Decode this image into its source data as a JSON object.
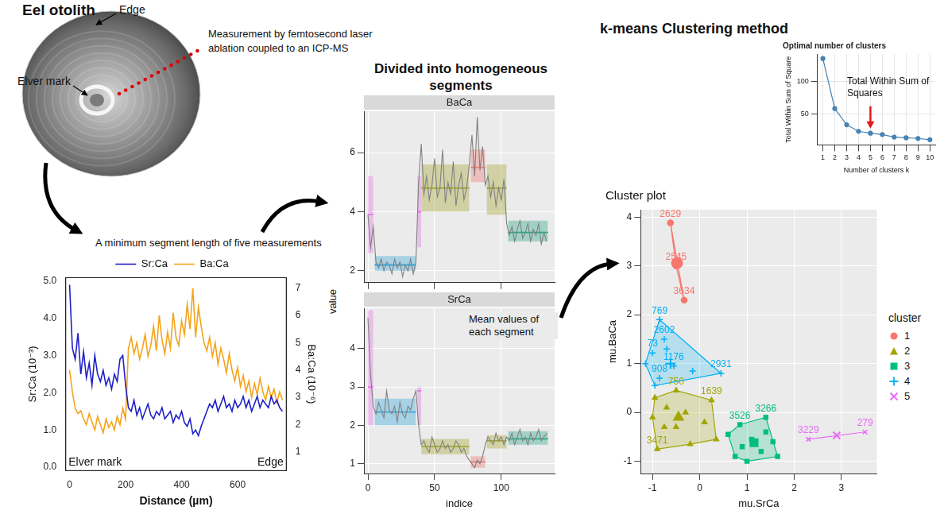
{
  "otolith": {
    "title": "Eel otolith",
    "edge": "Edge",
    "elver_mark": "Elver mark",
    "method": "Measurement by femtosecond laser ablation coupled to an ICP-MS"
  },
  "steps": {
    "segment_rule": "A minimum segment length of five measurements",
    "segmentation": "Divided into homogeneous segments",
    "segment_means": "Mean values of each segment",
    "clustering": "k-means Clustering method",
    "elbow_note": "Total Within Sum of Squares"
  },
  "chart_data": [
    {
      "type": "line",
      "x_label": "Distance (µm)",
      "y_label": "Sr:Ca (10⁻³)",
      "y2_label": "Ba:Ca (10⁻⁶)",
      "start_label": "Elver mark",
      "end_label": "Edge",
      "x": [
        0,
        10,
        20,
        30,
        40,
        50,
        60,
        70,
        80,
        90,
        100,
        110,
        120,
        130,
        140,
        150,
        160,
        170,
        180,
        190,
        200,
        210,
        220,
        230,
        240,
        250,
        260,
        270,
        280,
        290,
        300,
        310,
        320,
        330,
        340,
        350,
        360,
        370,
        380,
        390,
        400,
        410,
        420,
        430,
        440,
        450,
        460,
        470,
        480,
        490,
        500,
        510,
        520,
        530,
        540,
        550,
        560,
        570,
        580,
        590,
        600,
        610,
        620,
        630,
        640,
        650,
        660,
        670,
        680,
        690,
        700,
        710,
        720,
        730,
        740,
        750,
        760
      ],
      "series": [
        {
          "name": "Sr:Ca",
          "color": "#1f1fc8",
          "values": [
            4.9,
            3.2,
            2.9,
            3.6,
            2.5,
            3.1,
            2.4,
            2.8,
            2.2,
            3.0,
            2.5,
            2.3,
            2.6,
            2.2,
            2.4,
            2.1,
            2.5,
            2.3,
            2.9,
            3.0,
            2.2,
            1.6,
            1.5,
            1.8,
            1.4,
            1.6,
            1.3,
            1.5,
            1.7,
            1.4,
            1.3,
            1.5,
            1.4,
            1.6,
            1.3,
            1.4,
            1.5,
            1.2,
            1.4,
            1.3,
            1.5,
            1.2,
            1.1,
            1.3,
            0.9,
            1.0,
            0.85,
            1.1,
            1.3,
            1.5,
            1.7,
            1.6,
            1.8,
            1.5,
            1.7,
            1.9,
            1.6,
            1.7,
            1.5,
            1.8,
            1.6,
            1.7,
            1.9,
            1.6,
            1.8,
            1.5,
            1.7,
            1.9,
            1.6,
            1.8,
            1.7,
            1.6,
            1.9,
            1.7,
            1.8,
            1.6,
            1.5
          ]
        },
        {
          "name": "Ba:Ca",
          "color": "#f5a31a",
          "axis": "y2",
          "values": [
            4.0,
            3.2,
            2.6,
            2.4,
            2.5,
            2.2,
            2.0,
            2.4,
            2.1,
            1.8,
            2.3,
            2.0,
            1.7,
            2.2,
            1.9,
            2.1,
            1.8,
            2.3,
            2.0,
            2.6,
            2.2,
            4.8,
            5.2,
            4.6,
            5.0,
            4.4,
            4.8,
            5.3,
            4.5,
            4.9,
            5.6,
            4.7,
            6.0,
            5.1,
            4.6,
            5.4,
            4.8,
            6.1,
            5.2,
            4.9,
            5.8,
            5.3,
            6.4,
            5.5,
            7.0,
            5.2,
            6.3,
            5.6,
            5.0,
            4.7,
            5.2,
            4.5,
            5.0,
            4.2,
            4.8,
            4.4,
            3.9,
            4.6,
            4.0,
            3.6,
            4.1,
            3.4,
            3.8,
            3.2,
            3.6,
            3.0,
            3.5,
            3.1,
            3.7,
            3.2,
            2.9,
            3.4,
            3.0,
            3.3,
            2.8,
            3.2,
            2.9
          ]
        }
      ],
      "xlim": [
        -15,
        775
      ],
      "xticks": [
        0,
        200,
        400,
        600
      ],
      "ylim": [
        -0.1,
        5.1
      ],
      "yticks": [
        {
          "value": 0,
          "label": "0.0"
        },
        {
          "value": 1,
          "label": "1.0"
        },
        {
          "value": 2,
          "label": "2.0"
        },
        {
          "value": 3,
          "label": "3.0"
        },
        {
          "value": 4,
          "label": "4.0"
        },
        {
          "value": 5,
          "label": "5.0"
        }
      ],
      "y2lim": [
        0.3,
        7.4
      ],
      "y2ticks": [
        1,
        2,
        3,
        4,
        5,
        6,
        7
      ],
      "legend": "top",
      "grid": false
    },
    {
      "type": "line",
      "x_label": "indice",
      "y_label": "value",
      "xlim": [
        -3,
        140
      ],
      "xticks": [
        0,
        50,
        100
      ],
      "grid": true,
      "x": [
        0,
        2,
        4,
        6,
        8,
        10,
        12,
        14,
        16,
        18,
        20,
        22,
        24,
        26,
        28,
        30,
        32,
        34,
        36,
        38,
        40,
        42,
        44,
        46,
        48,
        50,
        52,
        54,
        56,
        58,
        60,
        62,
        64,
        66,
        68,
        70,
        72,
        74,
        76,
        78,
        80,
        82,
        84,
        86,
        88,
        90,
        92,
        94,
        96,
        98,
        100,
        102,
        104,
        106,
        108,
        110,
        112,
        114,
        116,
        118,
        120,
        122,
        124,
        126,
        128,
        130,
        132,
        134
      ],
      "panels": [
        {
          "title": "BaCa",
          "color": "#808080",
          "tick_labels": "y",
          "ylim": [
            1.6,
            7.4
          ],
          "yticks": [
            2,
            4,
            6
          ],
          "values": [
            3.9,
            2.8,
            3.5,
            2.3,
            2.1,
            2.4,
            2.0,
            2.3,
            2.2,
            1.9,
            2.4,
            2.1,
            2.3,
            1.8,
            2.2,
            2.0,
            2.4,
            1.9,
            2.3,
            5.0,
            6.3,
            4.6,
            5.2,
            4.4,
            4.9,
            5.8,
            4.5,
            4.8,
            6.1,
            4.3,
            5.0,
            4.6,
            5.7,
            4.2,
            4.9,
            5.3,
            4.4,
            4.8,
            5.6,
            6.6,
            5.2,
            7.2,
            5.4,
            6.2,
            4.9,
            5.2,
            4.5,
            5.0,
            4.2,
            4.8,
            4.4,
            5.1,
            3.6,
            3.2,
            3.5,
            3.0,
            3.4,
            3.7,
            3.1,
            3.3,
            3.6,
            3.0,
            3.4,
            3.2,
            3.6,
            2.9,
            3.3,
            3.0
          ],
          "segments": [
            {
              "start": 0,
              "end": 4,
              "mean": 3.9,
              "low": 2.6,
              "high": 5.2,
              "color": "#e377e3"
            },
            {
              "start": 5,
              "end": 36,
              "mean": 2.2,
              "low": 2.0,
              "high": 2.5,
              "color": "#3ba7d9"
            },
            {
              "start": 37,
              "end": 40,
              "mean": 4.0,
              "low": 2.8,
              "high": 5.2,
              "color": "#e377e3"
            },
            {
              "start": 40,
              "end": 76,
              "mean": 4.8,
              "low": 4.0,
              "high": 5.6,
              "color": "#a6a632"
            },
            {
              "start": 77,
              "end": 88,
              "mean": 5.5,
              "low": 5.0,
              "high": 6.1,
              "color": "#f07a72"
            },
            {
              "start": 89,
              "end": 104,
              "mean": 4.8,
              "low": 3.9,
              "high": 5.6,
              "color": "#a6a632"
            },
            {
              "start": 105,
              "end": 135,
              "mean": 3.3,
              "low": 3.0,
              "high": 3.7,
              "color": "#2aa98a"
            }
          ]
        },
        {
          "title": "SrCa",
          "color": "#808080",
          "ylim": [
            0.75,
            5.05
          ],
          "yticks": [
            1,
            2,
            3,
            4
          ],
          "values": [
            4.8,
            3.3,
            2.5,
            2.3,
            2.6,
            2.4,
            2.2,
            2.9,
            2.4,
            2.3,
            2.5,
            2.1,
            2.6,
            2.3,
            2.2,
            2.5,
            2.4,
            2.7,
            2.9,
            2.0,
            1.5,
            1.6,
            1.4,
            1.3,
            1.7,
            1.5,
            1.3,
            1.4,
            1.6,
            1.4,
            1.5,
            1.3,
            1.4,
            1.6,
            1.5,
            1.3,
            1.4,
            1.2,
            1.1,
            1.0,
            0.9,
            1.1,
            1.0,
            1.2,
            1.5,
            1.7,
            1.6,
            1.5,
            1.8,
            1.6,
            1.7,
            1.5,
            1.7,
            1.6,
            1.8,
            1.5,
            1.7,
            1.9,
            1.6,
            1.7,
            1.5,
            1.8,
            1.6,
            1.7,
            1.9,
            1.6,
            1.7,
            1.8
          ],
          "segments": [
            {
              "start": 0,
              "end": 4,
              "mean": 3.0,
              "low": 2.0,
              "high": 5.0,
              "color": "#e377e3"
            },
            {
              "start": 5,
              "end": 36,
              "mean": 2.35,
              "low": 2.0,
              "high": 2.7,
              "color": "#3ba7d9"
            },
            {
              "start": 37,
              "end": 40,
              "mean": 2.9,
              "low": 2.0,
              "high": 3.0,
              "color": "#e377e3"
            },
            {
              "start": 40,
              "end": 76,
              "mean": 1.45,
              "low": 1.25,
              "high": 1.65,
              "color": "#a6a632"
            },
            {
              "start": 77,
              "end": 88,
              "mean": 1.05,
              "low": 0.9,
              "high": 1.2,
              "color": "#f07a72"
            },
            {
              "start": 89,
              "end": 104,
              "mean": 1.6,
              "low": 1.4,
              "high": 1.75,
              "color": "#a6a632"
            },
            {
              "start": 105,
              "end": 135,
              "mean": 1.65,
              "low": 1.5,
              "high": 1.85,
              "color": "#2aa98a"
            }
          ]
        }
      ]
    },
    {
      "type": "line",
      "title": "Optimal number of clusters",
      "x_label": "Number of clusters k",
      "y_label": "Total Within Sum of Square",
      "x": [
        1,
        2,
        3,
        4,
        5,
        6,
        7,
        8,
        9,
        10
      ],
      "values": [
        135,
        58,
        33,
        23,
        20,
        18,
        14,
        13,
        12,
        10
      ],
      "color": "#4682b4",
      "marker": "circle",
      "xlim": [
        0.55,
        10.45
      ],
      "xticks": [
        1,
        2,
        3,
        4,
        5,
        6,
        7,
        8,
        9,
        10
      ],
      "ylim": [
        2,
        142
      ],
      "yticks": [
        50,
        100
      ],
      "grid": true,
      "arrow": {
        "x": 5,
        "color": "#e41a1c"
      }
    },
    {
      "type": "scatter",
      "title": "Cluster plot",
      "x_label": "mu.SrCa",
      "y_label": "mu.BaCa",
      "legend": "right",
      "legend_title": "cluster",
      "xlim": [
        -1.25,
        3.75
      ],
      "xticks": [
        -1,
        0,
        1,
        2,
        3
      ],
      "ylim": [
        -1.25,
        4.15
      ],
      "yticks": [
        -1,
        0,
        1,
        2,
        3,
        4
      ],
      "grid": true,
      "series": [
        {
          "name": "1",
          "color": "#F8766D",
          "marker": "circle",
          "center": [
            -0.48,
            3.06
          ],
          "points": [
            {
              "x": -0.62,
              "y": 3.88,
              "label": "2629"
            },
            {
              "x": -0.5,
              "y": 3.0,
              "label": "2545"
            },
            {
              "x": -0.33,
              "y": 2.3,
              "label": "3634"
            }
          ]
        },
        {
          "name": "2",
          "color": "#A3A500",
          "marker": "triangle",
          "center": [
            -0.45,
            -0.1
          ],
          "points": [
            {
              "x": -0.5,
              "y": 0.45,
              "label": "750"
            },
            {
              "x": 0.25,
              "y": 0.25,
              "label": "1639"
            },
            {
              "x": -0.9,
              "y": -0.75,
              "label": "3471"
            },
            {
              "x": -0.95,
              "y": 0.3
            },
            {
              "x": -0.7,
              "y": 0.1
            },
            {
              "x": -0.3,
              "y": 0.0
            },
            {
              "x": -0.5,
              "y": -0.3
            },
            {
              "x": 0.1,
              "y": -0.2
            },
            {
              "x": -0.75,
              "y": -0.3
            },
            {
              "x": 0.35,
              "y": -0.55
            },
            {
              "x": -1.0,
              "y": -0.1
            },
            {
              "x": -0.2,
              "y": -0.65
            }
          ]
        },
        {
          "name": "3",
          "color": "#00BF7D",
          "marker": "square",
          "center": [
            1.15,
            -0.62
          ],
          "points": [
            {
              "x": 0.85,
              "y": -0.25,
              "label": "3526"
            },
            {
              "x": 1.4,
              "y": -0.1,
              "label": "3266"
            },
            {
              "x": 0.6,
              "y": -0.45
            },
            {
              "x": 0.75,
              "y": -0.9
            },
            {
              "x": 1.1,
              "y": -0.55
            },
            {
              "x": 1.3,
              "y": -0.8
            },
            {
              "x": 1.55,
              "y": -0.6
            },
            {
              "x": 1.65,
              "y": -0.9
            },
            {
              "x": 1.0,
              "y": -1.0
            },
            {
              "x": 1.4,
              "y": -0.4
            },
            {
              "x": 0.9,
              "y": -0.7
            }
          ]
        },
        {
          "name": "4",
          "color": "#00B0F6",
          "marker": "plus",
          "center": [
            -0.62,
            1.0
          ],
          "points": [
            {
              "x": -0.85,
              "y": 1.9,
              "label": "769"
            },
            {
              "x": -0.75,
              "y": 1.5,
              "label": "2602"
            },
            {
              "x": -1.0,
              "y": 1.22,
              "label": "73"
            },
            {
              "x": -0.55,
              "y": 0.95,
              "label": "1176"
            },
            {
              "x": 0.45,
              "y": 0.8,
              "label": "2931"
            },
            {
              "x": -0.85,
              "y": 0.7,
              "label": "908"
            },
            {
              "x": -1.15,
              "y": 1.0
            },
            {
              "x": -0.7,
              "y": 1.3
            },
            {
              "x": -0.95,
              "y": 0.55
            },
            {
              "x": -0.15,
              "y": 0.85
            }
          ]
        },
        {
          "name": "5",
          "color": "#E76BF3",
          "marker": "x",
          "center": [
            2.9,
            -0.47
          ],
          "points": [
            {
              "x": 2.3,
              "y": -0.55,
              "label": "3229"
            },
            {
              "x": 3.5,
              "y": -0.4,
              "label": "279"
            }
          ]
        }
      ]
    }
  ]
}
